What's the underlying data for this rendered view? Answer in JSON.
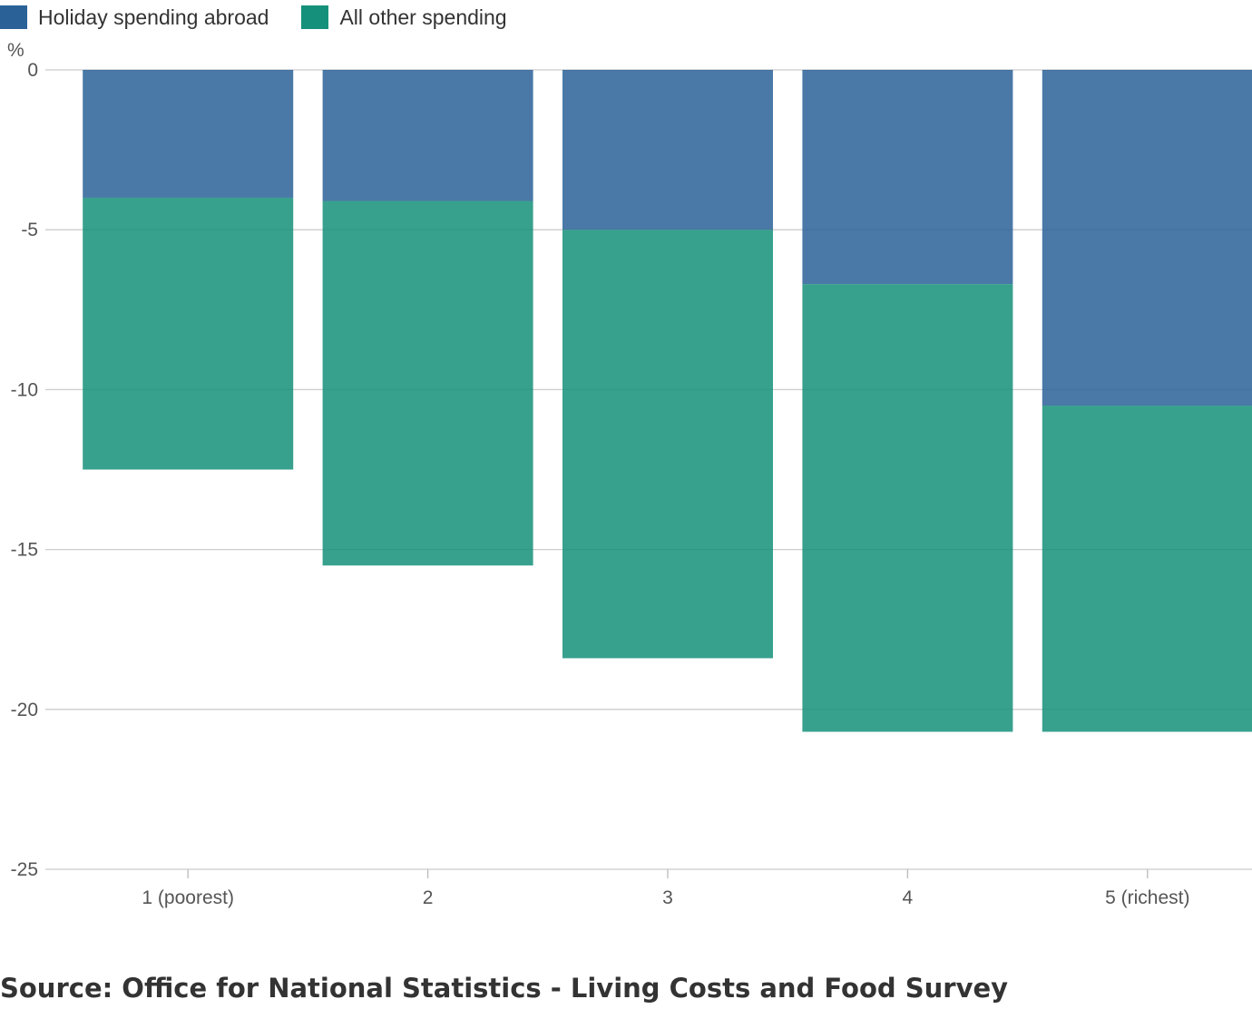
{
  "chart_data": {
    "type": "bar",
    "stacked": true,
    "categories": [
      "1 (poorest)",
      "2",
      "3",
      "4",
      "5 (richest)"
    ],
    "series": [
      {
        "name": "Holiday spending abroad",
        "values": [
          -4.0,
          -4.1,
          -5.0,
          -6.7,
          -10.5
        ]
      },
      {
        "name": "All other spending",
        "values": [
          -8.5,
          -11.4,
          -13.4,
          -14.0,
          -10.2
        ]
      }
    ],
    "colors": [
      "#2a6298",
      "#15907a"
    ],
    "ylabel": "%",
    "ylim": [
      -25,
      0
    ],
    "yticks": [
      0,
      -5,
      -10,
      -15,
      -20,
      -25
    ],
    "grid": true,
    "legend": "top-left"
  },
  "source": "Source: Office for National Statistics - Living Costs and Food Survey"
}
